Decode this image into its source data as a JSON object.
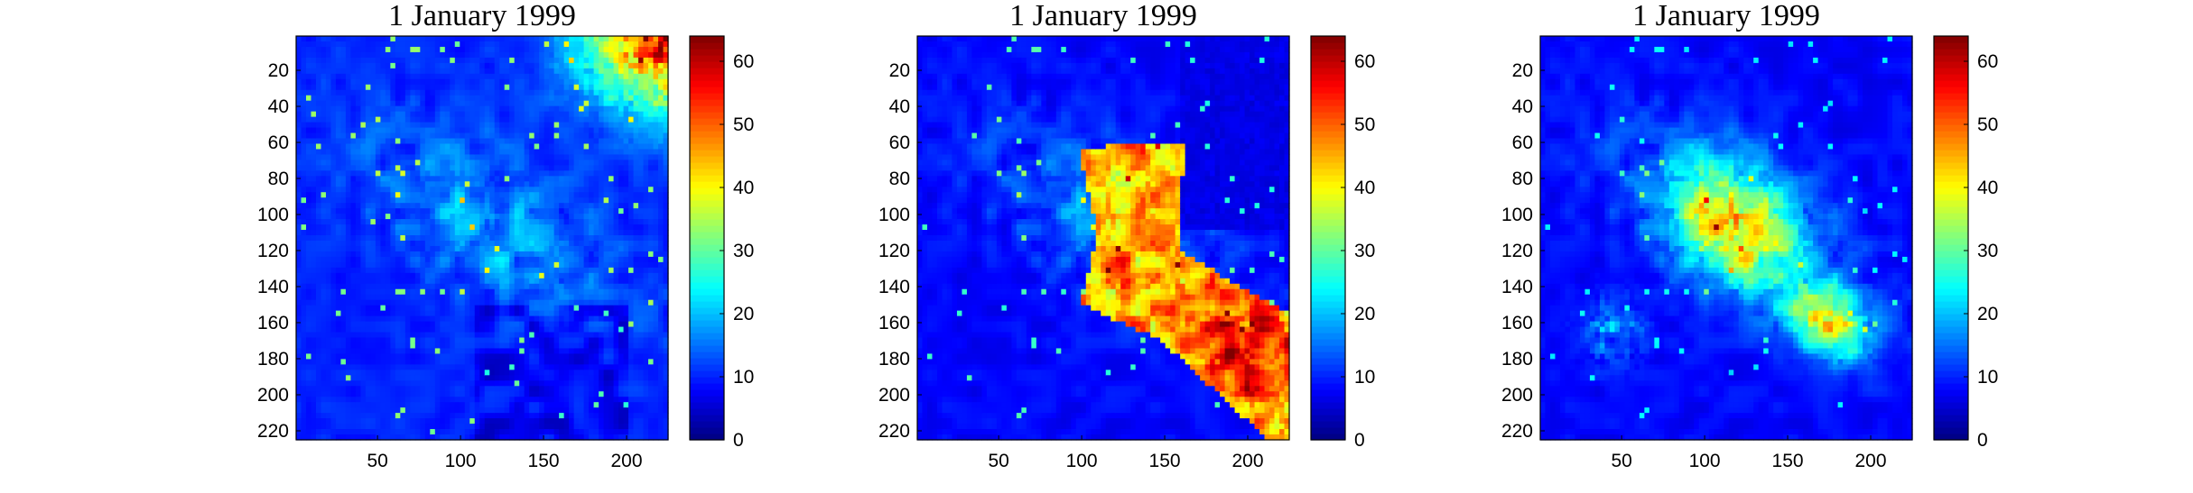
{
  "chart_data": [
    {
      "type": "heatmap",
      "title": "1 January 1999",
      "xlabel": "",
      "ylabel": "",
      "x_ticks": [
        50,
        100,
        150,
        200
      ],
      "y_ticks": [
        20,
        40,
        60,
        80,
        100,
        120,
        140,
        160,
        180,
        200,
        220
      ],
      "xlim": [
        1,
        225
      ],
      "ylim": [
        225,
        1
      ],
      "colorbar": {
        "range": [
          0,
          64
        ],
        "ticks": [
          0,
          10,
          20,
          30,
          40,
          50,
          60
        ],
        "colormap": "jet"
      },
      "pattern": "original",
      "background_level": 8
    },
    {
      "type": "heatmap",
      "title": "1 January 1999",
      "xlabel": "",
      "ylabel": "",
      "x_ticks": [
        50,
        100,
        150,
        200
      ],
      "y_ticks": [
        20,
        40,
        60,
        80,
        100,
        120,
        140,
        160,
        180,
        200,
        220
      ],
      "xlim": [
        1,
        225
      ],
      "ylim": [
        225,
        1
      ],
      "colorbar": {
        "range": [
          0,
          64
        ],
        "ticks": [
          0,
          10,
          20,
          30,
          40,
          50,
          60
        ],
        "colormap": "jet"
      },
      "pattern": "swath",
      "background_level": 6
    },
    {
      "type": "heatmap",
      "title": "1 January 1999",
      "xlabel": "",
      "ylabel": "",
      "x_ticks": [
        50,
        100,
        150,
        200
      ],
      "y_ticks": [
        20,
        40,
        60,
        80,
        100,
        120,
        140,
        160,
        180,
        200,
        220
      ],
      "xlim": [
        1,
        225
      ],
      "ylim": [
        225,
        1
      ],
      "colorbar": {
        "range": [
          0,
          64
        ],
        "ticks": [
          0,
          10,
          20,
          30,
          40,
          50,
          60
        ],
        "colormap": "jet"
      },
      "pattern": "blended",
      "background_level": 6
    }
  ]
}
